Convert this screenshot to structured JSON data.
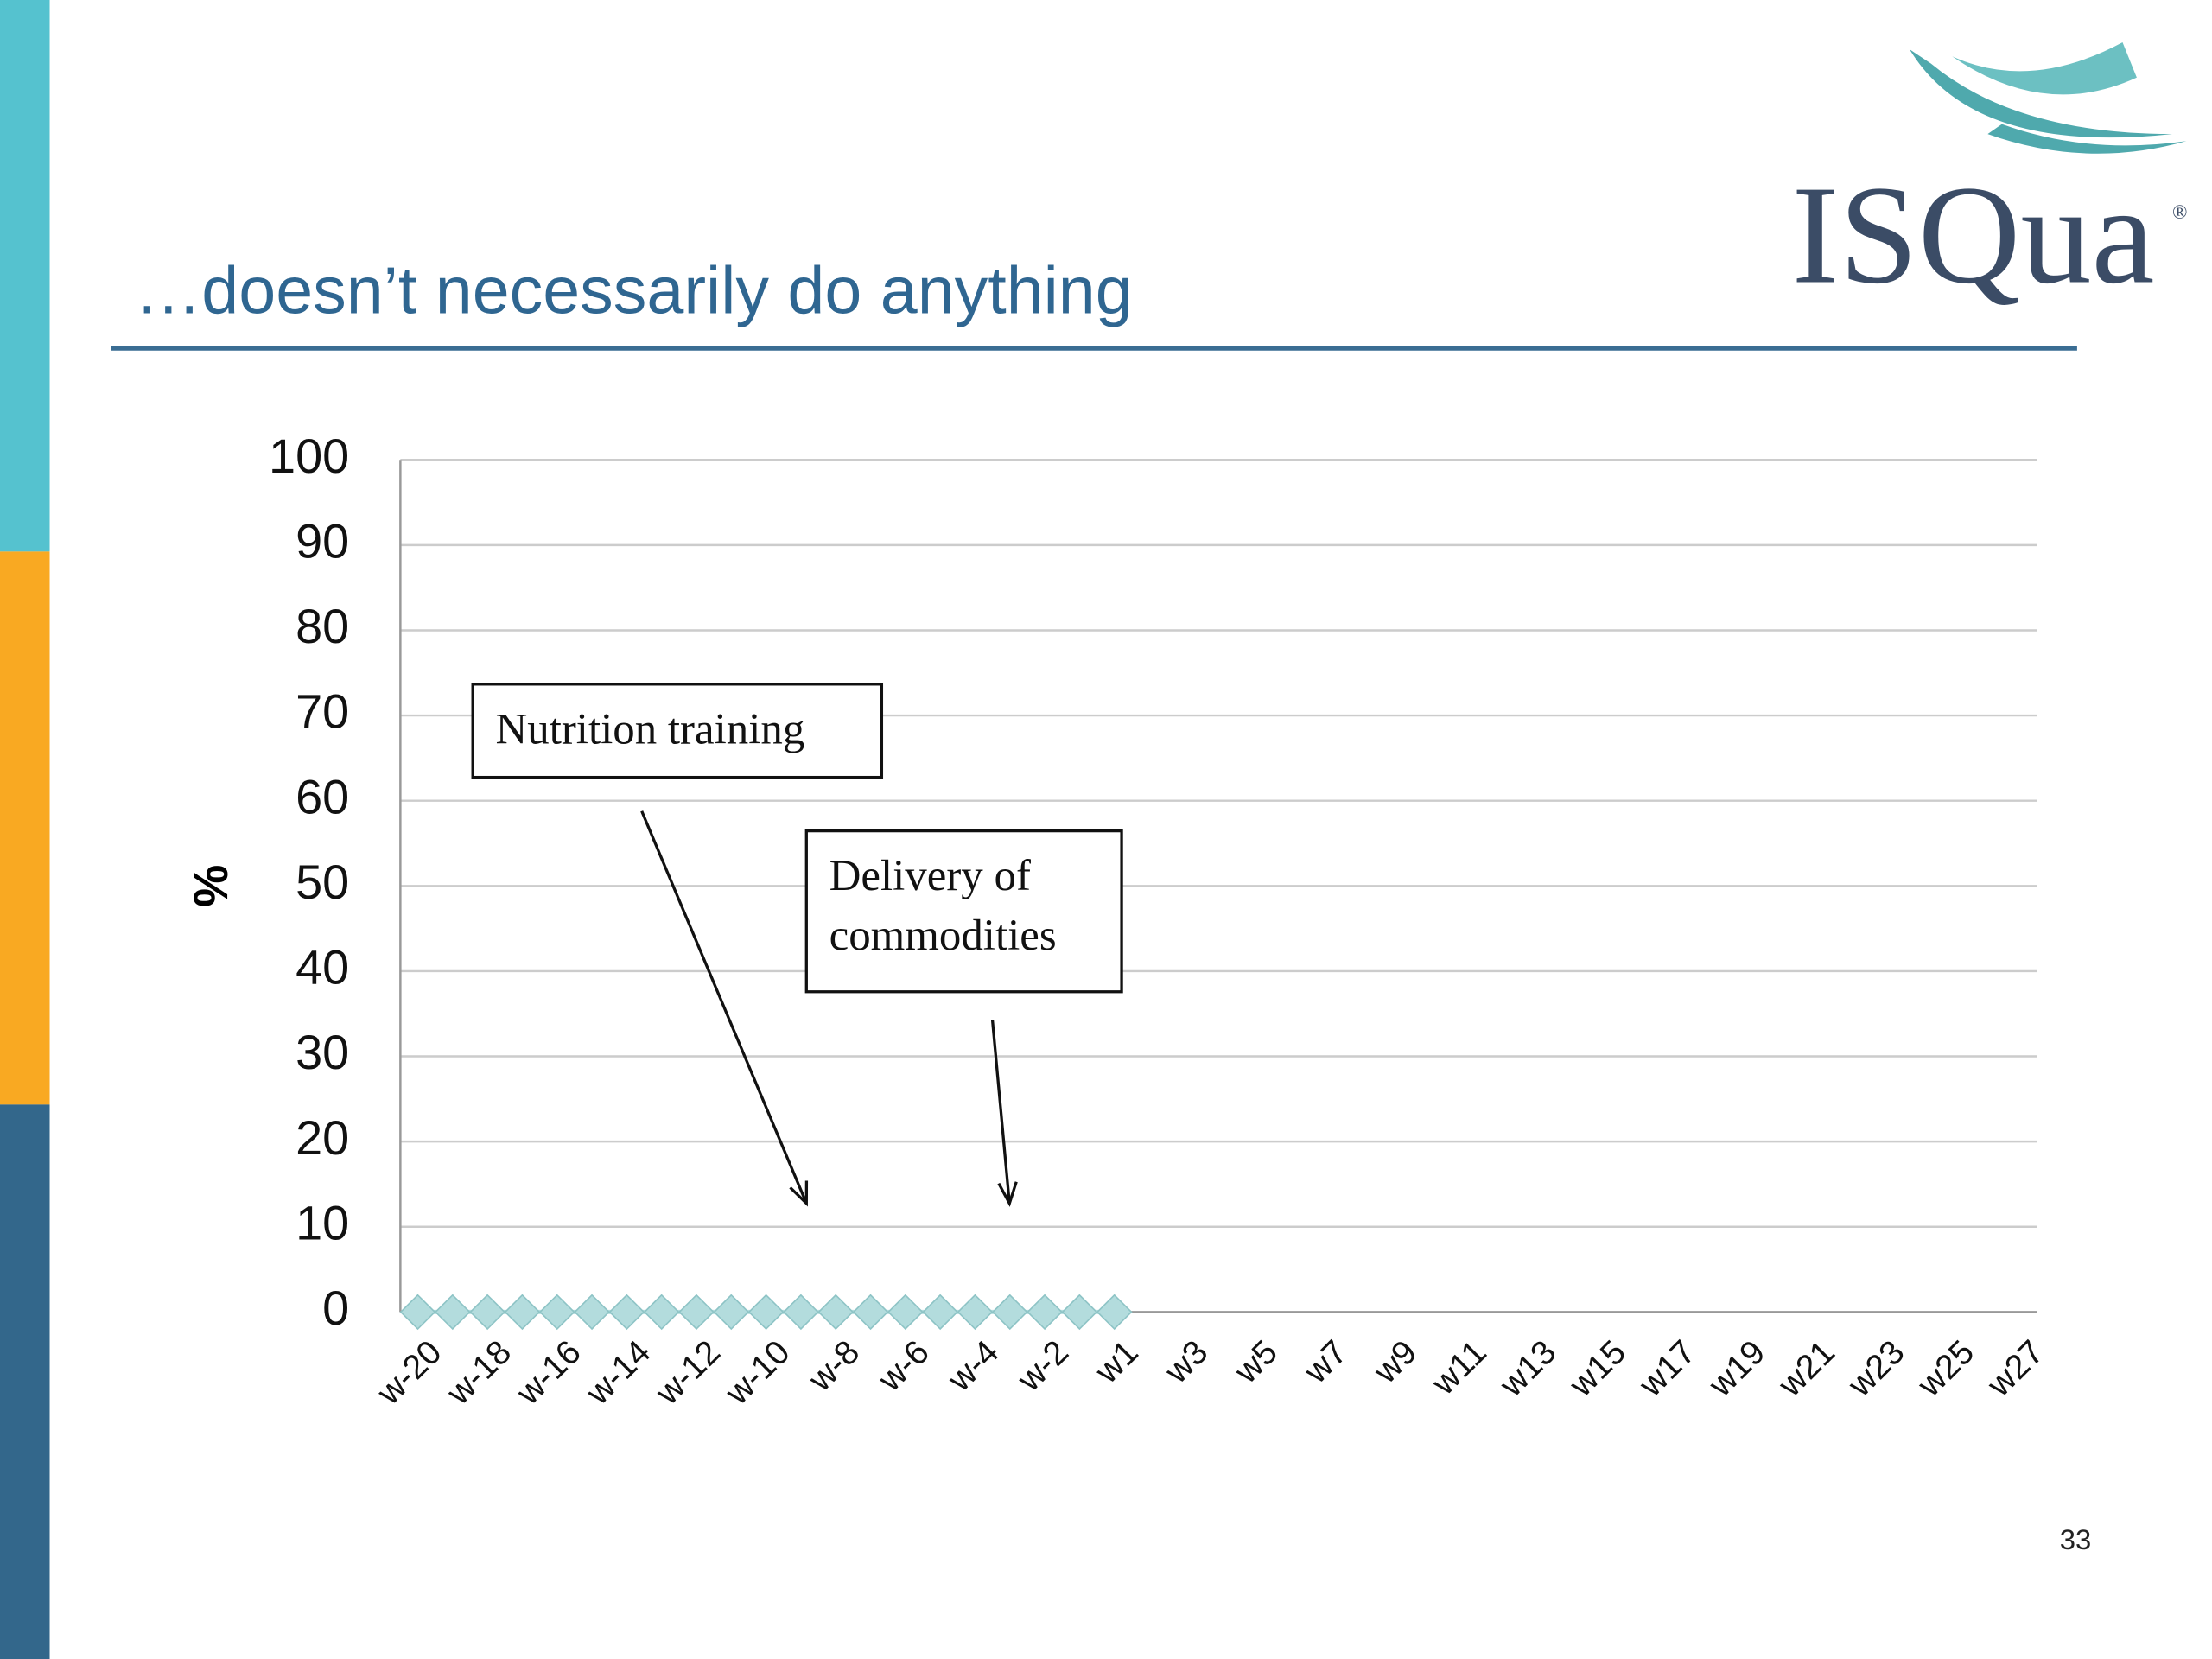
{
  "slide": {
    "title": "…doesn’t necessarily do anything",
    "logo": "ISQua",
    "page_number": "33"
  },
  "chart_data": {
    "type": "line",
    "categories": [
      "w-20",
      null,
      "w-18",
      null,
      "w-16",
      null,
      "w-14",
      null,
      "w-12",
      null,
      "w-10",
      null,
      "w-8",
      null,
      "w-6",
      null,
      "w-4",
      null,
      "w-2",
      null,
      "w1",
      null,
      "w3",
      null,
      "w5",
      null,
      "w7",
      null,
      "w9",
      null,
      "w11",
      null,
      "w13",
      null,
      "w15",
      null,
      "w17",
      null,
      "w19",
      null,
      "w21",
      null,
      "w23",
      null,
      "w25",
      null,
      "w27"
    ],
    "series": [
      {
        "name": "%",
        "color": "#b3dcdd",
        "values": [
          0,
          0,
          0,
          0,
          0,
          0,
          0,
          0,
          0,
          0,
          0,
          0,
          0,
          0,
          0,
          0,
          0,
          0,
          0,
          0,
          0,
          null,
          null,
          null,
          null,
          null,
          null,
          null,
          null,
          null,
          null,
          null,
          null,
          null,
          null,
          null,
          null,
          null,
          null,
          null,
          null,
          null,
          null,
          null,
          null,
          null,
          null
        ]
      }
    ],
    "ylabel": "%",
    "ylim": [
      0,
      100
    ],
    "yticks": [
      0,
      10,
      20,
      30,
      40,
      50,
      60,
      70,
      80,
      90,
      100
    ],
    "grid": true,
    "annotations": [
      {
        "lines": [
          "Nutrition training"
        ]
      },
      {
        "lines": [
          "Delivery of",
          "commodities"
        ]
      }
    ]
  }
}
